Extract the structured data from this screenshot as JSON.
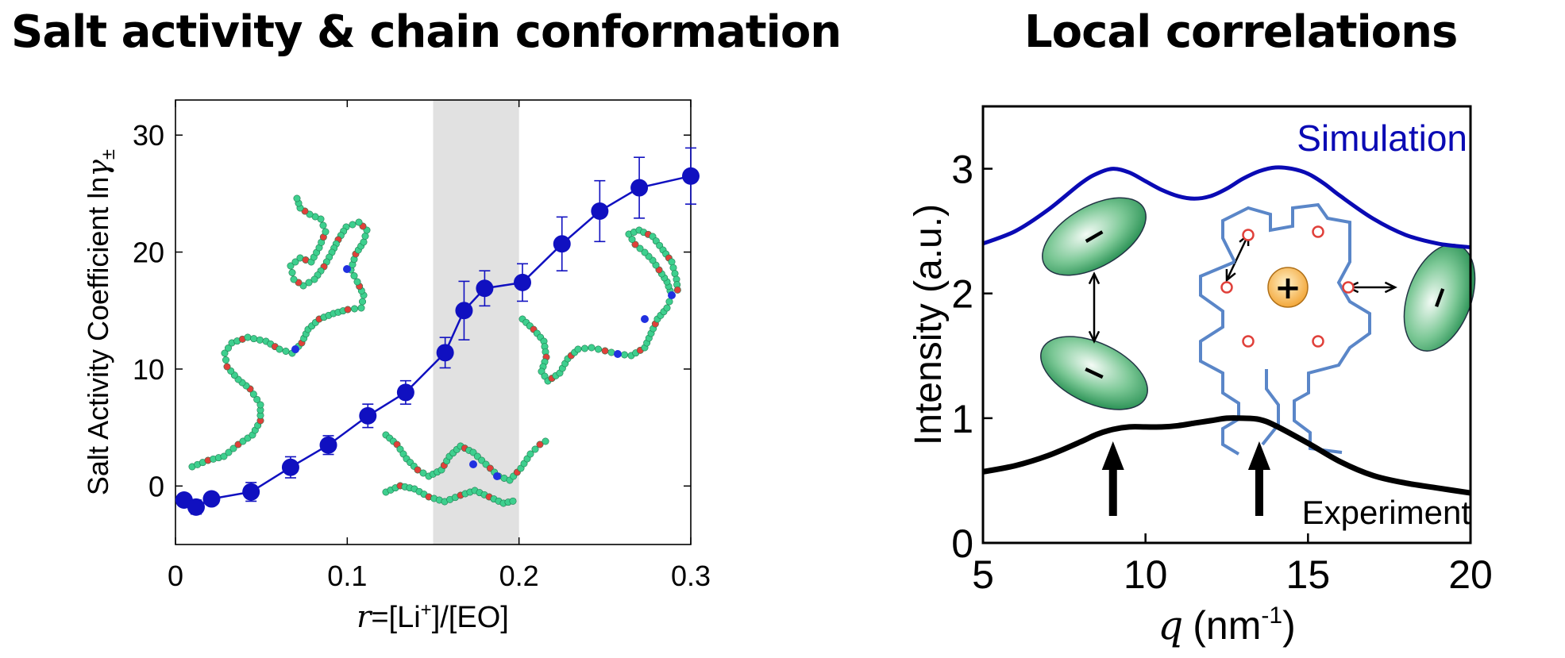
{
  "titles": {
    "left": "Salt activity & chain conformation",
    "right": "Local correlations"
  },
  "chart_data": [
    {
      "type": "scatter",
      "panel": "left",
      "ylabel_text": "Salt Activity Coefficient ln",
      "ylabel_symbol": "γ",
      "ylabel_sub": "±",
      "xlabel_var": "r",
      "xlabel_rest_a": "=[Li",
      "xlabel_sup": "+",
      "xlabel_rest_b": "]/[EO]",
      "xlim": [
        0,
        0.3
      ],
      "ylim": [
        -5,
        33
      ],
      "xticks": [
        0,
        0.1,
        0.2,
        0.3
      ],
      "xtick_labels": [
        "0",
        "0.1",
        "0.2",
        "0.3"
      ],
      "yticks": [
        0,
        10,
        20,
        30
      ],
      "ytick_labels": [
        "0",
        "10",
        "20",
        "30"
      ],
      "shaded_region": [
        0.15,
        0.2
      ],
      "series": [
        {
          "color": "#1010c0",
          "x": [
            0.005,
            0.012,
            0.021,
            0.044,
            0.067,
            0.089,
            0.112,
            0.134,
            0.157,
            0.168,
            0.18,
            0.202,
            0.225,
            0.247,
            0.27,
            0.3
          ],
          "y": [
            -1.2,
            -1.8,
            -1.1,
            -0.5,
            1.6,
            3.5,
            6.0,
            8.0,
            11.4,
            15.0,
            16.9,
            17.4,
            20.7,
            23.5,
            25.5,
            26.5
          ],
          "err": [
            0.5,
            0.6,
            0.4,
            0.8,
            0.9,
            0.8,
            1.0,
            1.0,
            1.3,
            2.5,
            1.5,
            1.6,
            2.3,
            2.6,
            2.6,
            2.4
          ]
        }
      ]
    },
    {
      "type": "line",
      "panel": "right",
      "ylabel": "Intensity (a.u.)",
      "xlabel_var": "q",
      "xlabel_unit_a": "(nm",
      "xlabel_sup": "-1",
      "xlabel_unit_b": ")",
      "xlim": [
        5,
        20
      ],
      "ylim": [
        0,
        3.5
      ],
      "xticks": [
        5,
        10,
        15,
        20
      ],
      "xtick_labels": [
        "5",
        "10",
        "15",
        "20"
      ],
      "yticks": [
        0,
        1,
        2,
        3
      ],
      "ytick_labels": [
        "0",
        "1",
        "2",
        "3"
      ],
      "series": [
        {
          "name": "Simulation",
          "color": "#0a0ab4",
          "x": [
            5,
            6,
            7,
            8,
            8.5,
            9,
            9.5,
            10,
            10.5,
            11,
            11.5,
            12,
            12.5,
            13,
            13.5,
            14,
            14.5,
            15,
            15.5,
            16,
            17,
            18,
            19,
            20
          ],
          "y": [
            2.4,
            2.5,
            2.67,
            2.88,
            2.96,
            3.0,
            2.97,
            2.9,
            2.83,
            2.78,
            2.76,
            2.78,
            2.84,
            2.92,
            2.98,
            3.01,
            3.0,
            2.96,
            2.88,
            2.78,
            2.6,
            2.47,
            2.4,
            2.37
          ]
        },
        {
          "name": "Experiment",
          "color": "#000000",
          "x": [
            5,
            6,
            7,
            8,
            8.5,
            9,
            9.5,
            10,
            10.5,
            11,
            11.5,
            12,
            12.5,
            13,
            13.5,
            14,
            15,
            16,
            17,
            18,
            19,
            20
          ],
          "y": [
            0.57,
            0.62,
            0.7,
            0.81,
            0.87,
            0.91,
            0.93,
            0.93,
            0.93,
            0.94,
            0.96,
            0.98,
            1.0,
            1.0,
            0.99,
            0.94,
            0.8,
            0.65,
            0.54,
            0.48,
            0.44,
            0.4
          ]
        }
      ],
      "arrows_at_q": [
        9.0,
        13.5
      ],
      "ion_symbols": {
        "cation": "+",
        "anion": "−"
      }
    }
  ],
  "colors": {
    "marker": "#1010c0",
    "shade": "#e1e1e1",
    "anion_green": "#2f9a5a",
    "cation_orange": "#f4a93a",
    "peo_blue": "#5a86c8",
    "oxygen_red": "#e0403a"
  }
}
